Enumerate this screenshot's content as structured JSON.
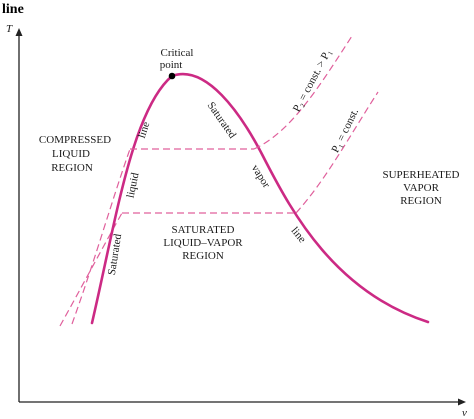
{
  "header_text": "line",
  "axes": {
    "y_label": "T",
    "x_label": "v"
  },
  "critical_point": {
    "line1": "Critical",
    "line2": "point"
  },
  "curve_labels": {
    "sat_liquid_word1": "Saturated",
    "sat_liquid_word2": "liquid",
    "sat_liquid_word3": "line",
    "sat_vapor_word1": "Saturated",
    "sat_vapor_word2": "vapor",
    "sat_vapor_word3": "line"
  },
  "isobars": {
    "p2": "P₂ = const. > P₁",
    "p1": "P₁ = const."
  },
  "regions": {
    "compressed": [
      "COMPRESSED",
      "LIQUID",
      "REGION"
    ],
    "saturated_mixture": [
      "SATURATED",
      "LIQUID–VAPOR",
      "REGION"
    ],
    "superheated": [
      "SUPERHEATED",
      "VAPOR",
      "REGION"
    ]
  },
  "colors": {
    "curve": "#cc2a84",
    "isobar": "#e0609c",
    "axis": "#222222",
    "text": "#1a1a1a"
  }
}
